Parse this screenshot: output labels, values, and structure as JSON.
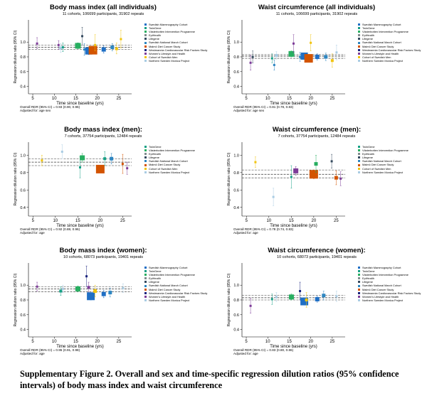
{
  "caption": "Supplementary Figure 2. Overall and sex and time-specific regression dilution ratios (95% confidence intervals) of body mass index and waist circumference",
  "colors": {
    "Swedish Mammography Cohort": "#1f6fc5",
    "TwinGene": "#16a085",
    "Västerbotten Intervention Programme": "#27ae60",
    "EpiHealth": "#7f8c8d",
    "Lifegene": "#34495e",
    "Swedish National March Cohort": "#2e86c1",
    "Malmö Diet Cancer Study": "#d35400",
    "Westmannia Cardiovascular Risk Factors Study": "#1a237e",
    "Women's Lifestyle and Health": "#7d3c98",
    "Cohort of Swedish Men": "#f1c40f",
    "Northern Sweden Monica Project": "#a9cce3",
    "refline": "#333333",
    "ci": "#999999"
  },
  "chart_data": [
    {
      "type": "scatter",
      "title": "Body mass index (all individuals)",
      "subtitle": "11 cohorts, 106699 participants, 31902 repeats",
      "xlabel": "Time since baseline (yrs)",
      "ylabel": "Regression dilution ratio (95% CI)",
      "xlim": [
        4,
        28
      ],
      "ylim": [
        0.3,
        1.3
      ],
      "xticks": [
        5,
        10,
        15,
        20,
        25
      ],
      "yticks": [
        0.4,
        0.6,
        0.8,
        1.0
      ],
      "overall": 0.93,
      "overall_ci": [
        0.9,
        0.96
      ],
      "overall_text": "Overall RDR (95% CI) = 0.93 (0.90, 0.96)",
      "adjusted_text": "Adjusted for: age sex",
      "legend": [
        "Swedish Mammography Cohort",
        "TwinGene",
        "Västerbotten Intervention Programme",
        "EpiHealth",
        "Lifegene",
        "Swedish National March Cohort",
        "Malmö Diet Cancer Study",
        "Westmannia Cardiovascular Risk Factors Study",
        "Women's Lifestyle and Health",
        "Cohort of Swedish Men",
        "Northern Sweden Monica Project"
      ],
      "points": [
        {
          "x": 6,
          "y": 0.98,
          "lo": 0.91,
          "hi": 1.06,
          "s": 3,
          "c": "Women's Lifestyle and Health"
        },
        {
          "x": 11,
          "y": 0.96,
          "lo": 0.9,
          "hi": 1.02,
          "s": 3,
          "c": "Women's Lifestyle and Health"
        },
        {
          "x": 11.5,
          "y": 0.92,
          "lo": 0.86,
          "hi": 0.98,
          "s": 4,
          "c": "Northern Sweden Monica Project"
        },
        {
          "x": 12,
          "y": 0.93,
          "lo": 0.87,
          "hi": 0.99,
          "s": 3,
          "c": "TwinGene"
        },
        {
          "x": 15.5,
          "y": 0.95,
          "lo": 0.91,
          "hi": 0.99,
          "s": 8,
          "c": "Västerbotten Intervention Programme"
        },
        {
          "x": 16.5,
          "y": 1.08,
          "lo": 0.96,
          "hi": 1.2,
          "s": 3,
          "c": "Lifegene"
        },
        {
          "x": 17,
          "y": 0.9,
          "lo": 0.82,
          "hi": 0.98,
          "s": 3,
          "c": "Swedish National March Cohort"
        },
        {
          "x": 18,
          "y": 0.88,
          "lo": 0.83,
          "hi": 0.93,
          "s": 10,
          "c": "Swedish Mammography Cohort"
        },
        {
          "x": 19,
          "y": 0.89,
          "lo": 0.85,
          "hi": 0.93,
          "s": 12,
          "c": "Malmö Diet Cancer Study"
        },
        {
          "x": 19.5,
          "y": 0.96,
          "lo": 0.88,
          "hi": 1.1,
          "s": 3,
          "c": "Cohort of Swedish Men"
        },
        {
          "x": 21.5,
          "y": 0.9,
          "lo": 0.85,
          "hi": 0.95,
          "s": 6,
          "c": "Swedish Mammography Cohort"
        },
        {
          "x": 23.5,
          "y": 0.93,
          "lo": 0.88,
          "hi": 0.98,
          "s": 5,
          "c": "Swedish National March Cohort"
        },
        {
          "x": 24.5,
          "y": 0.91,
          "lo": 0.84,
          "hi": 0.99,
          "s": 4,
          "c": "Cohort of Swedish Men"
        },
        {
          "x": 25.5,
          "y": 1.04,
          "lo": 0.92,
          "hi": 1.16,
          "s": 3,
          "c": "Cohort of Swedish Men"
        }
      ]
    },
    {
      "type": "scatter",
      "title": "Waist circumference (all individuals)",
      "subtitle": "11 cohorts, 106699 participants, 31902 repeats",
      "xlabel": "Time since baseline (yrs)",
      "ylabel": "Regression dilution ratio (95% CI)",
      "xlim": [
        4,
        28
      ],
      "ylim": [
        0.3,
        1.3
      ],
      "xticks": [
        5,
        10,
        15,
        20,
        25
      ],
      "yticks": [
        0.4,
        0.6,
        0.8,
        1.0
      ],
      "overall": 0.81,
      "overall_ci": [
        0.78,
        0.83
      ],
      "overall_text": "Overall RDR (95% CI) = 0.81 (0.78, 0.83)",
      "adjusted_text": "Adjusted for: age sex",
      "legend": [
        "Swedish Mammography Cohort",
        "TwinGene",
        "Västerbotten Intervention Programme",
        "EpiHealth",
        "Lifegene",
        "Swedish National March Cohort",
        "Malmö Diet Cancer Study",
        "Westmannia Cardiovascular Risk Factors Study",
        "Women's Lifestyle and Health",
        "Cohort of Swedish Men",
        "Northern Sweden Monica Project"
      ],
      "points": [
        {
          "x": 6,
          "y": 0.72,
          "lo": 0.62,
          "hi": 0.82,
          "s": 3,
          "c": "Women's Lifestyle and Health"
        },
        {
          "x": 6.5,
          "y": 0.8,
          "lo": 0.72,
          "hi": 0.88,
          "s": 3,
          "c": "Lifegene"
        },
        {
          "x": 11,
          "y": 0.78,
          "lo": 0.72,
          "hi": 0.84,
          "s": 3,
          "c": "TwinGene"
        },
        {
          "x": 11.5,
          "y": 0.69,
          "lo": 0.62,
          "hi": 0.76,
          "s": 3,
          "c": "Swedish National March Cohort"
        },
        {
          "x": 12,
          "y": 0.82,
          "lo": 0.77,
          "hi": 0.87,
          "s": 4,
          "c": "Northern Sweden Monica Project"
        },
        {
          "x": 15.5,
          "y": 0.84,
          "lo": 0.8,
          "hi": 0.88,
          "s": 8,
          "c": "Västerbotten Intervention Programme"
        },
        {
          "x": 16,
          "y": 0.98,
          "lo": 0.86,
          "hi": 1.1,
          "s": 3,
          "c": "Women's Lifestyle and Health"
        },
        {
          "x": 17.5,
          "y": 0.8,
          "lo": 0.74,
          "hi": 0.86,
          "s": 3,
          "c": "Swedish National March Cohort"
        },
        {
          "x": 18.5,
          "y": 0.81,
          "lo": 0.77,
          "hi": 0.85,
          "s": 10,
          "c": "Swedish Mammography Cohort"
        },
        {
          "x": 19.5,
          "y": 0.78,
          "lo": 0.75,
          "hi": 0.81,
          "s": 12,
          "c": "Malmö Diet Cancer Study"
        },
        {
          "x": 20,
          "y": 0.99,
          "lo": 0.88,
          "hi": 1.1,
          "s": 3,
          "c": "Cohort of Swedish Men"
        },
        {
          "x": 21.5,
          "y": 0.8,
          "lo": 0.76,
          "hi": 0.84,
          "s": 6,
          "c": "Swedish Mammography Cohort"
        },
        {
          "x": 23.5,
          "y": 0.8,
          "lo": 0.75,
          "hi": 0.85,
          "s": 5,
          "c": "Swedish National March Cohort"
        },
        {
          "x": 25,
          "y": 0.75,
          "lo": 0.66,
          "hi": 0.84,
          "s": 4,
          "c": "Cohort of Swedish Men"
        },
        {
          "x": 26,
          "y": 0.86,
          "lo": 0.76,
          "hi": 0.96,
          "s": 3,
          "c": "Northern Sweden Monica Project"
        }
      ]
    },
    {
      "type": "scatter",
      "title": "Body mass index (men):",
      "subtitle": "7 cohorts, 37754 participants, 12484 repeats",
      "xlabel": "Time since baseline (yrs)",
      "ylabel": "Regression dilution ratio (95% CI)",
      "xlim": [
        4,
        27
      ],
      "ylim": [
        0.3,
        1.15
      ],
      "xticks": [
        5,
        10,
        15,
        20,
        25
      ],
      "yticks": [
        0.4,
        0.6,
        0.8,
        1.0
      ],
      "overall": 0.92,
      "overall_ci": [
        0.88,
        0.96
      ],
      "overall_text": "Overall RDR (95% CI) = 0.92 (0.88, 0.96)",
      "adjusted_text": "Adjusted for: age",
      "legend": [
        "TwinGene",
        "Västerbotten Intervention Programme",
        "EpiHealth",
        "Lifegene",
        "Swedish National March Cohort",
        "Malmö Diet Cancer Study",
        "Cohort of Swedish Men",
        "Northern Sweden Monica Project"
      ],
      "points": [
        {
          "x": 7,
          "y": 0.94,
          "lo": 0.88,
          "hi": 1.0,
          "s": 3,
          "c": "Cohort of Swedish Men"
        },
        {
          "x": 11.5,
          "y": 1.04,
          "lo": 0.96,
          "hi": 1.12,
          "s": 3,
          "c": "Northern Sweden Monica Project"
        },
        {
          "x": 15.5,
          "y": 0.86,
          "lo": 0.74,
          "hi": 0.98,
          "s": 3,
          "c": "TwinGene"
        },
        {
          "x": 16,
          "y": 0.97,
          "lo": 0.92,
          "hi": 1.02,
          "s": 7,
          "c": "Västerbotten Intervention Programme"
        },
        {
          "x": 20,
          "y": 0.84,
          "lo": 0.8,
          "hi": 0.88,
          "s": 12,
          "c": "Malmö Diet Cancer Study"
        },
        {
          "x": 21,
          "y": 0.96,
          "lo": 0.88,
          "hi": 1.04,
          "s": 4,
          "c": "TwinGene"
        },
        {
          "x": 22.5,
          "y": 0.96,
          "lo": 0.9,
          "hi": 1.02,
          "s": 5,
          "c": "Swedish National March Cohort"
        },
        {
          "x": 25,
          "y": 0.9,
          "lo": 0.79,
          "hi": 1.01,
          "s": 3,
          "c": "Malmö Diet Cancer Study"
        },
        {
          "x": 26,
          "y": 0.85,
          "lo": 0.78,
          "hi": 0.92,
          "s": 3,
          "c": "Women's Lifestyle and Health"
        }
      ]
    },
    {
      "type": "scatter",
      "title": "Waist circumference (men):",
      "subtitle": "7 cohorts, 37754 participants, 12484 repeats",
      "xlabel": "Time since baseline (yrs)",
      "ylabel": "Regression dilution ratio (95% CI)",
      "xlim": [
        4,
        27
      ],
      "ylim": [
        0.3,
        1.15
      ],
      "xticks": [
        5,
        10,
        15,
        20,
        25
      ],
      "yticks": [
        0.4,
        0.6,
        0.8,
        1.0
      ],
      "overall": 0.78,
      "overall_ci": [
        0.74,
        0.83
      ],
      "overall_text": "Overall RDR (95% CI) = 0.78 (0.74, 0.83)",
      "adjusted_text": "Adjusted for: age",
      "legend": [
        "TwinGene",
        "Västerbotten Intervention Programme",
        "EpiHealth",
        "Lifegene",
        "Swedish National March Cohort",
        "Malmö Diet Cancer Study",
        "Cohort of Swedish Men",
        "Northern Sweden Monica Project"
      ],
      "points": [
        {
          "x": 7,
          "y": 0.92,
          "lo": 0.86,
          "hi": 0.98,
          "s": 3,
          "c": "Cohort of Swedish Men"
        },
        {
          "x": 11,
          "y": 0.52,
          "lo": 0.42,
          "hi": 0.62,
          "s": 3,
          "c": "Northern Sweden Monica Project"
        },
        {
          "x": 15,
          "y": 0.75,
          "lo": 0.62,
          "hi": 0.88,
          "s": 3,
          "c": "TwinGene"
        },
        {
          "x": 16,
          "y": 0.82,
          "lo": 0.77,
          "hi": 0.87,
          "s": 7,
          "c": "Women's Lifestyle and Health"
        },
        {
          "x": 20,
          "y": 0.78,
          "lo": 0.73,
          "hi": 0.83,
          "s": 12,
          "c": "Malmö Diet Cancer Study"
        },
        {
          "x": 20.5,
          "y": 0.9,
          "lo": 0.8,
          "hi": 1.0,
          "s": 5,
          "c": "Västerbotten Intervention Programme"
        },
        {
          "x": 24,
          "y": 0.93,
          "lo": 0.85,
          "hi": 1.01,
          "s": 3,
          "c": "Lifegene"
        },
        {
          "x": 25,
          "y": 0.74,
          "lo": 0.66,
          "hi": 0.82,
          "s": 5,
          "c": "Malmö Diet Cancer Study"
        },
        {
          "x": 26,
          "y": 0.73,
          "lo": 0.65,
          "hi": 0.81,
          "s": 3,
          "c": "Women's Lifestyle and Health"
        }
      ]
    },
    {
      "type": "scatter",
      "title": "Body mass index (women):",
      "subtitle": "10 cohorts, 68073 participants, 19401 repeats",
      "xlabel": "Time since baseline (yrs)",
      "ylabel": "Regression dilution ratio (95% CI)",
      "xlim": [
        4,
        28
      ],
      "ylim": [
        0.3,
        1.3
      ],
      "xticks": [
        5,
        10,
        15,
        20,
        25
      ],
      "yticks": [
        0.4,
        0.6,
        0.8,
        1.0
      ],
      "overall": 0.95,
      "overall_ci": [
        0.91,
        0.98
      ],
      "overall_text": "Overall RDR (95% CI) = 0.95 (0.91, 0.98)",
      "adjusted_text": "Adjusted for: age",
      "legend": [
        "Swedish Mammography Cohort",
        "TwinGene",
        "Västerbotten Intervention Programme",
        "EpiHealth",
        "Lifegene",
        "Swedish National March Cohort",
        "Malmö Diet Cancer Study",
        "Westmannia Cardiovascular Risk Factors Study",
        "Women's Lifestyle and Health",
        "Northern Sweden Monica Project"
      ],
      "points": [
        {
          "x": 6,
          "y": 0.98,
          "lo": 0.92,
          "hi": 1.04,
          "s": 3,
          "c": "Women's Lifestyle and Health"
        },
        {
          "x": 11.5,
          "y": 0.92,
          "lo": 0.86,
          "hi": 0.98,
          "s": 4,
          "c": "TwinGene"
        },
        {
          "x": 12,
          "y": 0.95,
          "lo": 0.9,
          "hi": 1.0,
          "s": 3,
          "c": "Northern Sweden Monica Project"
        },
        {
          "x": 15.5,
          "y": 0.95,
          "lo": 0.91,
          "hi": 0.99,
          "s": 7,
          "c": "Västerbotten Intervention Programme"
        },
        {
          "x": 17.5,
          "y": 1.12,
          "lo": 0.98,
          "hi": 1.26,
          "s": 3,
          "c": "Westmannia Cardiovascular Risk Factors Study"
        },
        {
          "x": 18,
          "y": 0.97,
          "lo": 0.9,
          "hi": 1.04,
          "s": 4,
          "c": "Women's Lifestyle and Health"
        },
        {
          "x": 18.5,
          "y": 0.85,
          "lo": 0.8,
          "hi": 0.9,
          "s": 11,
          "c": "Swedish Mammography Cohort"
        },
        {
          "x": 19.5,
          "y": 0.92,
          "lo": 0.84,
          "hi": 1.0,
          "s": 5,
          "c": "Cohort of Swedish Men"
        },
        {
          "x": 21.5,
          "y": 0.88,
          "lo": 0.83,
          "hi": 0.93,
          "s": 6,
          "c": "Swedish Mammography Cohort"
        },
        {
          "x": 23,
          "y": 0.9,
          "lo": 0.84,
          "hi": 0.96,
          "s": 5,
          "c": "Swedish National March Cohort"
        },
        {
          "x": 26,
          "y": 0.96,
          "lo": 0.9,
          "hi": 1.02,
          "s": 3,
          "c": "Northern Sweden Monica Project"
        }
      ]
    },
    {
      "type": "scatter",
      "title": "Waist circumference (women):",
      "subtitle": "10 cohorts, 68073 participants, 19401 repeats",
      "xlabel": "Time since baseline (yrs)",
      "ylabel": "Regression dilution ratio (95% CI)",
      "xlim": [
        4,
        28
      ],
      "ylim": [
        0.3,
        1.3
      ],
      "xticks": [
        5,
        10,
        15,
        20,
        25
      ],
      "yticks": [
        0.4,
        0.6,
        0.8,
        1.0
      ],
      "overall": 0.83,
      "overall_ci": [
        0.8,
        0.86
      ],
      "overall_text": "Overall RDR (95% CI) = 0.83 (0.80, 0.86)",
      "adjusted_text": "Adjusted for: age",
      "legend": [
        "Swedish Mammography Cohort",
        "TwinGene",
        "Västerbotten Intervention Programme",
        "EpiHealth",
        "Lifegene",
        "Swedish National March Cohort",
        "Malmö Diet Cancer Study",
        "Westmannia Cardiovascular Risk Factors Study",
        "Women's Lifestyle and Health",
        "Northern Sweden Monica Project"
      ],
      "points": [
        {
          "x": 6,
          "y": 0.72,
          "lo": 0.62,
          "hi": 0.82,
          "s": 3,
          "c": "Women's Lifestyle and Health"
        },
        {
          "x": 11,
          "y": 0.81,
          "lo": 0.74,
          "hi": 0.88,
          "s": 3,
          "c": "TwinGene"
        },
        {
          "x": 12,
          "y": 0.84,
          "lo": 0.78,
          "hi": 0.9,
          "s": 3,
          "c": "Northern Sweden Monica Project"
        },
        {
          "x": 15.5,
          "y": 0.84,
          "lo": 0.8,
          "hi": 0.88,
          "s": 7,
          "c": "Västerbotten Intervention Programme"
        },
        {
          "x": 17.5,
          "y": 0.92,
          "lo": 0.8,
          "hi": 1.04,
          "s": 3,
          "c": "Westmannia Cardiovascular Risk Factors Study"
        },
        {
          "x": 18.5,
          "y": 0.78,
          "lo": 0.73,
          "hi": 0.83,
          "s": 11,
          "c": "Swedish Mammography Cohort"
        },
        {
          "x": 19,
          "y": 0.8,
          "lo": 0.7,
          "hi": 0.9,
          "s": 4,
          "c": "Cohort of Swedish Men"
        },
        {
          "x": 21.5,
          "y": 0.81,
          "lo": 0.77,
          "hi": 0.85,
          "s": 6,
          "c": "Swedish Mammography Cohort"
        },
        {
          "x": 23,
          "y": 0.86,
          "lo": 0.8,
          "hi": 0.92,
          "s": 5,
          "c": "Swedish National March Cohort"
        },
        {
          "x": 26,
          "y": 0.85,
          "lo": 0.78,
          "hi": 0.92,
          "s": 3,
          "c": "Northern Sweden Monica Project"
        }
      ]
    }
  ]
}
